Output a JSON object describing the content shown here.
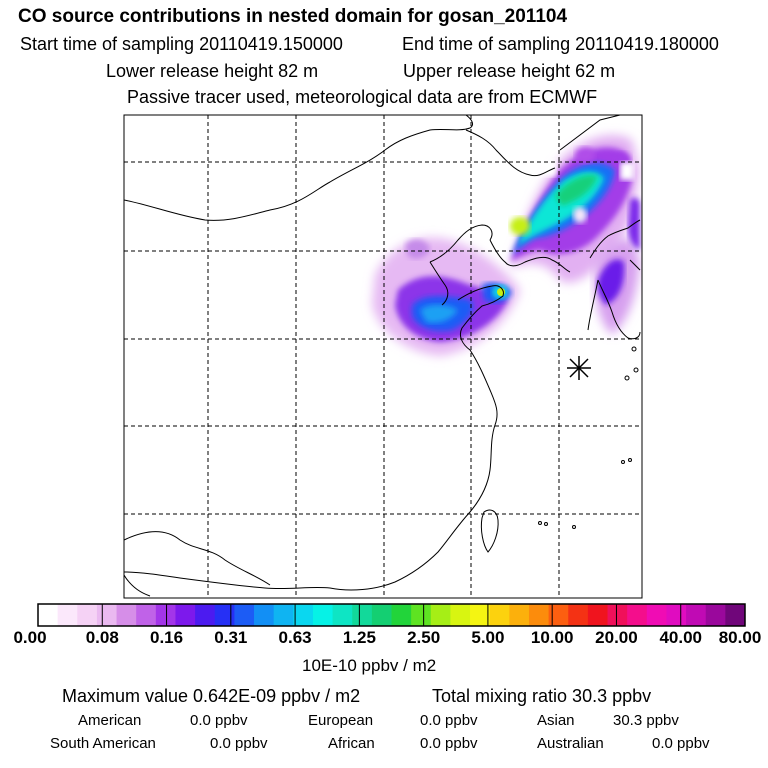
{
  "header": {
    "title": "CO  source contributions in nested domain for gosan_201104",
    "start_label": "Start time of sampling 20110419.150000",
    "end_label": "End time of sampling 20110419.180000",
    "lower_label": "Lower release height   82 m",
    "upper_label": "Upper release height   62 m",
    "note": "Passive tracer used, meteorological data are from ECMWF"
  },
  "colorbar": {
    "tick_labels": [
      "0.00",
      "0.08",
      "0.16",
      "0.31",
      "0.63",
      "1.25",
      "2.50",
      "5.00",
      "10.00",
      "20.00",
      "40.00",
      "80.00"
    ],
    "unit": "10E-10 ppbv / m2",
    "colors": [
      "#ffffff",
      "#fbe8fb",
      "#f5d2f5",
      "#eab9f0",
      "#d68ee8",
      "#c062e8",
      "#a335e9",
      "#7d19ec",
      "#4c1bf0",
      "#2630f5",
      "#1c5cf5",
      "#128ff5",
      "#0fb4f2",
      "#0ad7f0",
      "#06f2e6",
      "#0ee5c4",
      "#12d99a",
      "#14cf72",
      "#22d43a",
      "#5ee322",
      "#a6ee16",
      "#d8f511",
      "#f5f512",
      "#fcd20e",
      "#fcb00c",
      "#fc8c0c",
      "#fc5f10",
      "#f43214",
      "#f0141e",
      "#f0105a",
      "#f40e8c",
      "#f00cb4",
      "#e00cc0",
      "#c00ab4",
      "#9a089c",
      "#70067a"
    ]
  },
  "map": {
    "marker": "source-location-asterisk"
  },
  "stats": {
    "max_label": "Maximum value  0.642E-09 ppbv / m2",
    "total_label": "Total mixing ratio      30.3 ppbv",
    "american_label": "American",
    "american_value": "0.0 ppbv",
    "european_label": "European",
    "european_value": "0.0 ppbv",
    "asian_label": "Asian",
    "asian_value": "30.3 ppbv",
    "south_american_label": "South American",
    "south_american_value": "0.0 ppbv",
    "african_label": "African",
    "african_value": "0.0 ppbv",
    "australian_label": "Australian",
    "australian_value": "0.0 ppbv"
  }
}
